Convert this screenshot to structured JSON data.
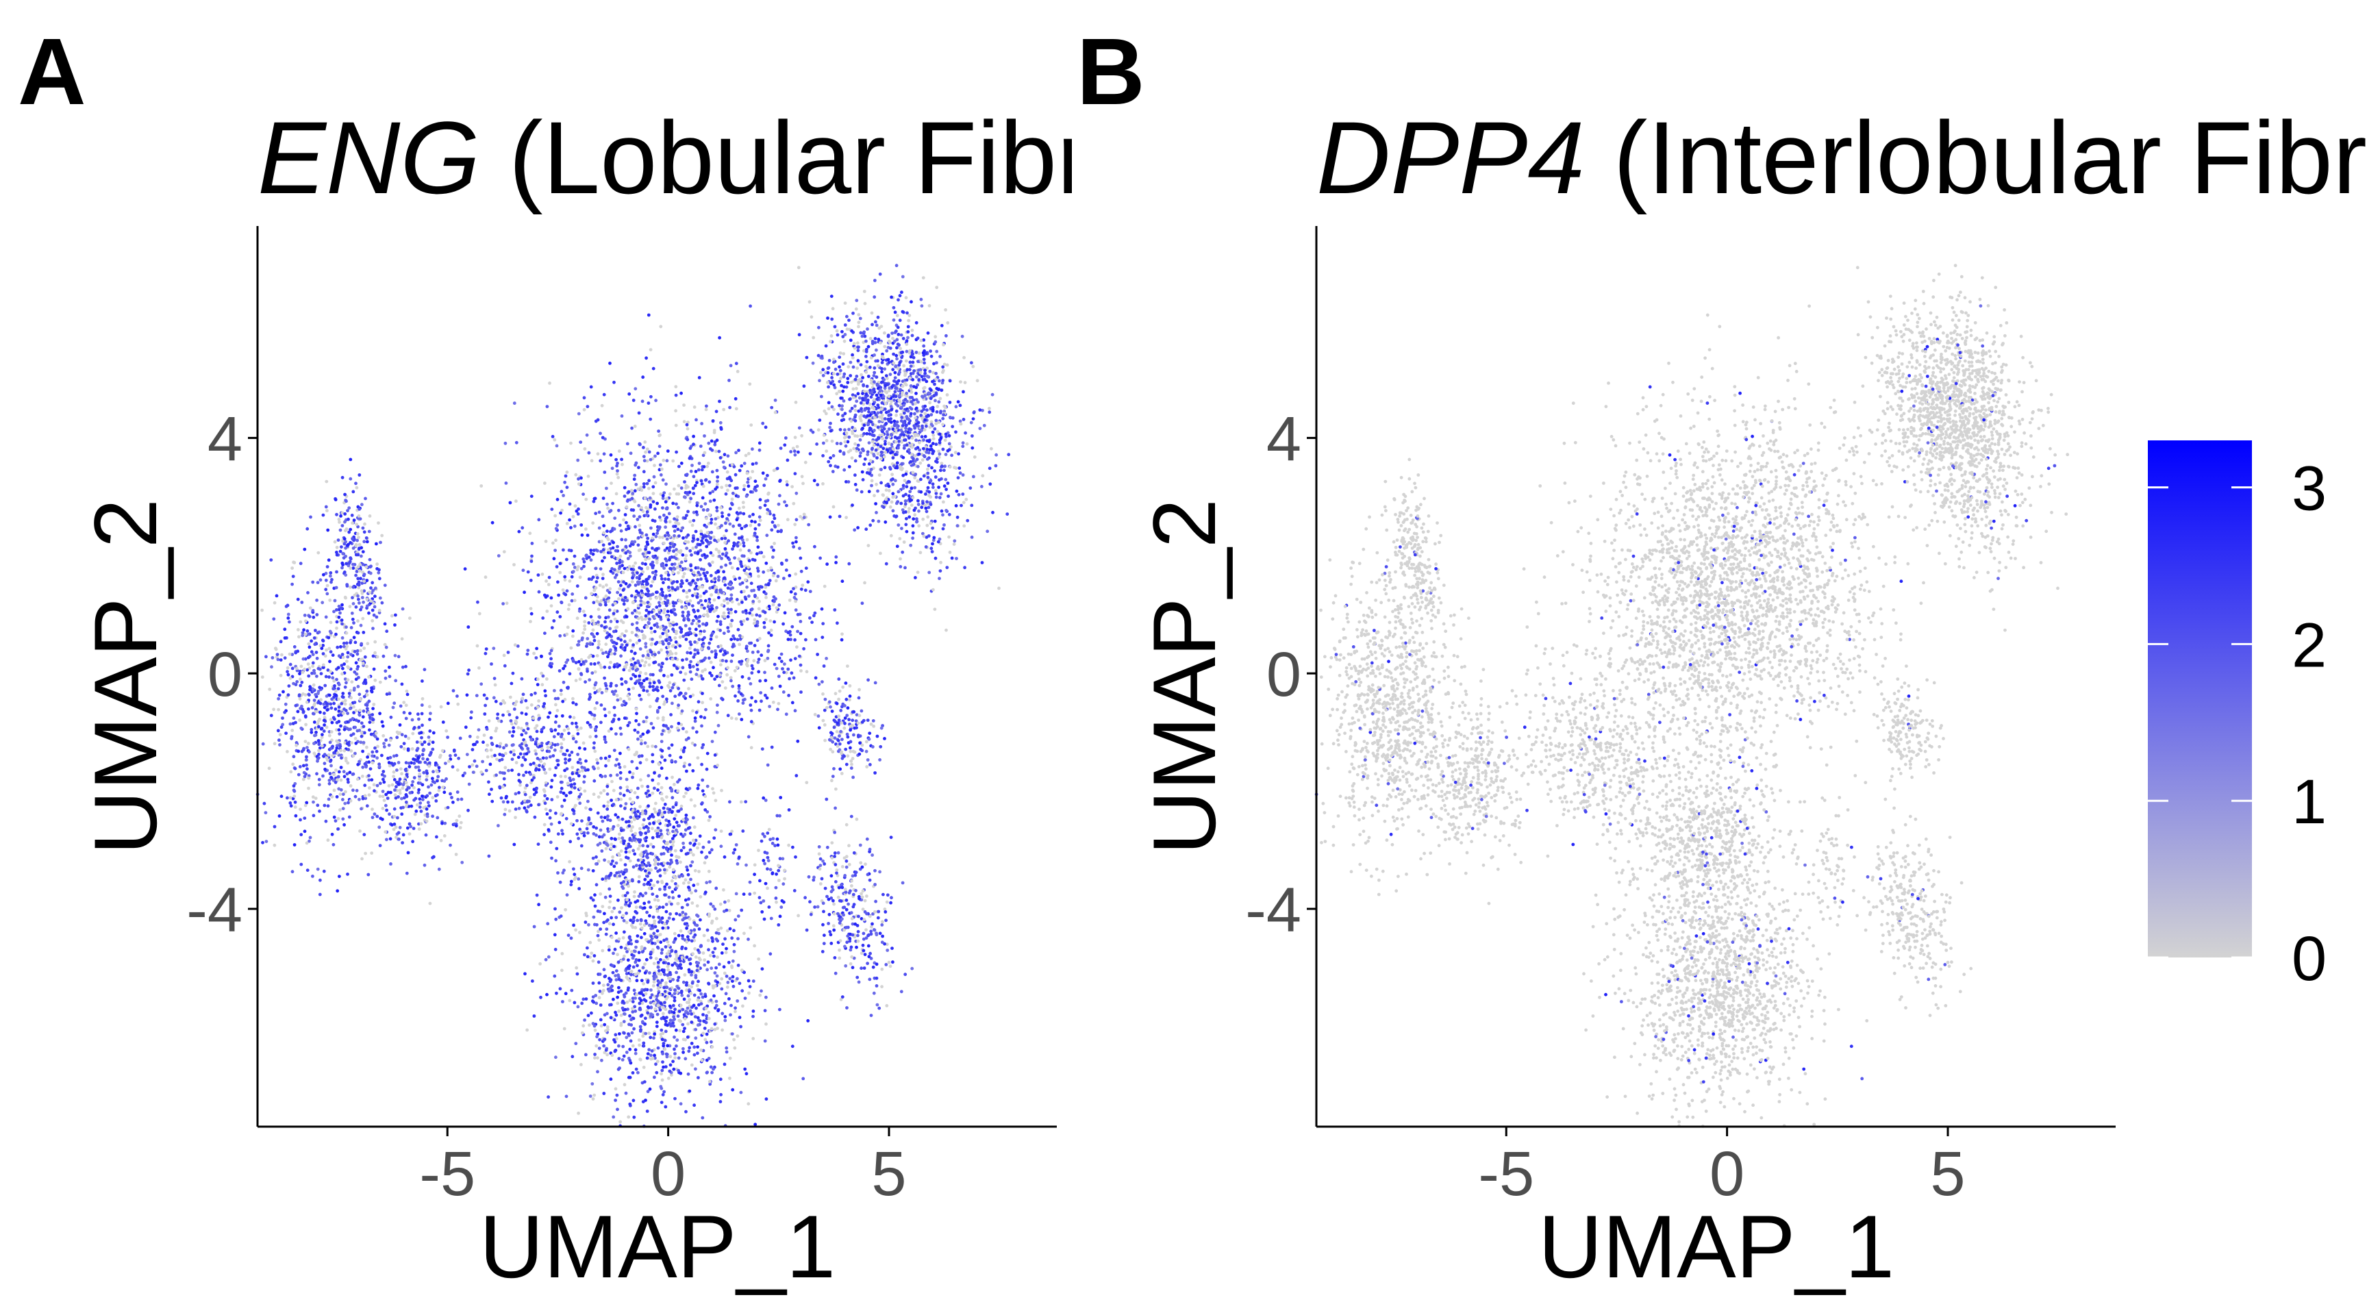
{
  "chart_data": [
    {
      "type": "scatter",
      "panel_label": "A",
      "title_gene": "ENG",
      "title_rest": " (Lobular Fibroblasts)",
      "xlabel": "UMAP_1",
      "ylabel": "UMAP_2",
      "xlim": [
        -9.3,
        8.8
      ],
      "ylim": [
        -7.7,
        7.6
      ],
      "xticks": [
        -5,
        0,
        5
      ],
      "yticks": [
        -4,
        0,
        4
      ],
      "xtick_labels": [
        "-5",
        "0",
        "5"
      ],
      "ytick_labels": [
        "-4",
        "0",
        "4"
      ],
      "grid": false,
      "color_low": "#d3d3d3",
      "color_high": "#0000ff",
      "expression_level": 0.72
    },
    {
      "type": "scatter",
      "panel_label": "B",
      "title_gene": "DPP4",
      "title_rest": " (Interlobular Fibroblasts)",
      "xlabel": "UMAP_1",
      "ylabel": "UMAP_2",
      "xlim": [
        -9.3,
        8.8
      ],
      "ylim": [
        -7.7,
        7.6
      ],
      "xticks": [
        -5,
        0,
        5
      ],
      "yticks": [
        -4,
        0,
        4
      ],
      "xtick_labels": [
        "-5",
        "0",
        "5"
      ],
      "ytick_labels": [
        "-4",
        "0",
        "4"
      ],
      "grid": false,
      "color_low": "#d3d3d3",
      "color_high": "#0000ff",
      "expression_level": 0.04
    }
  ],
  "legend": {
    "min": 0,
    "max": 3.3,
    "ticks": [
      0,
      1,
      2,
      3
    ],
    "tick_labels": [
      "0",
      "1",
      "2",
      "3"
    ],
    "color_low": "#d3d3d3",
    "color_high": "#0000ff"
  }
}
